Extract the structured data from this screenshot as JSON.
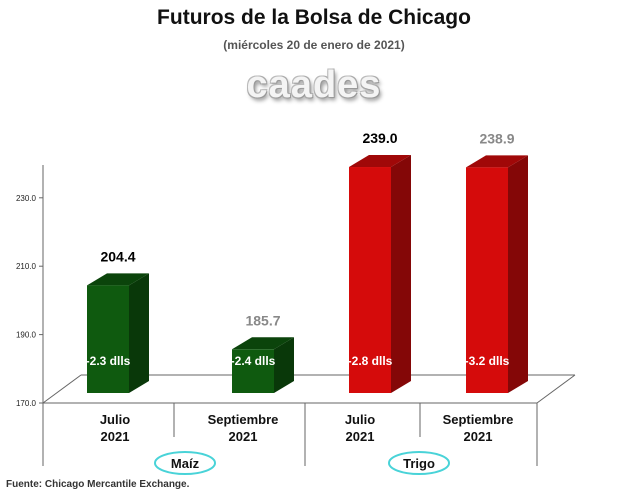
{
  "header": {
    "title": "Futuros de la Bolsa de Chicago",
    "subtitle": "(miércoles 20 de enero de 2021)",
    "logo_text": "caades"
  },
  "footer": {
    "source": "Fuente: Chicago Mercantile Exchange."
  },
  "chart_data": {
    "type": "bar",
    "title": "Futuros de la Bolsa de Chicago",
    "subtitle": "(miércoles 20 de enero de 2021)",
    "ylim": [
      170,
      240
    ],
    "yticks": [
      "170.0",
      "190.0",
      "210.0",
      "230.0"
    ],
    "ytick_values": [
      170,
      190,
      210,
      230
    ],
    "grid": false,
    "categories": [
      {
        "line1": "Julio",
        "line2": "2021"
      },
      {
        "line1": "Septiembre",
        "line2": "2021"
      },
      {
        "line1": "Julio",
        "line2": "2021"
      },
      {
        "line1": "Septiembre",
        "line2": "2021"
      }
    ],
    "values": [
      204.4,
      185.7,
      239.0,
      238.9
    ],
    "value_labels": [
      "204.4",
      "185.7",
      "239.0",
      "238.9"
    ],
    "change_labels": [
      "-2.3 dlls",
      "-2.4 dlls",
      "-2.8 dlls",
      "-3.2 dlls"
    ],
    "label_colors": [
      "#000000",
      "#888888",
      "#000000",
      "#888888"
    ],
    "bar_colors": [
      "#0f5a0f",
      "#0f5a0f",
      "#d50b0b",
      "#d50b0b"
    ],
    "groups": [
      {
        "name": "Maíz",
        "bars": [
          0,
          1
        ]
      },
      {
        "name": "Trigo",
        "bars": [
          2,
          3
        ]
      }
    ],
    "group_badge_border": "#49d3d8"
  }
}
